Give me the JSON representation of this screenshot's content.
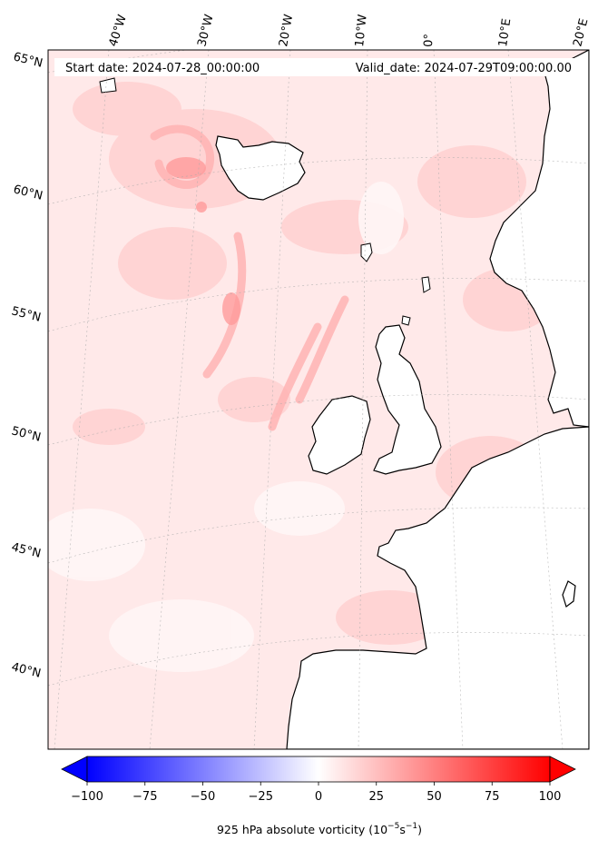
{
  "map": {
    "start_label": "Start date: 2024-07-28_00:00:00",
    "valid_label": "Valid_date: 2024-07-29T09:00:00.00",
    "lon_labels": [
      "40°W",
      "30°W",
      "20°W",
      "10°W",
      "0°",
      "10°E",
      "20°E"
    ],
    "lat_labels": [
      "65°N",
      "60°N",
      "55°N",
      "50°N",
      "45°N",
      "40°N"
    ],
    "colorbar": {
      "min": -100,
      "max": 100,
      "ticks": [
        "−100",
        "−75",
        "−50",
        "−25",
        "0",
        "25",
        "50",
        "75",
        "100"
      ],
      "label": "925 hPa absolute vorticity (10",
      "unit_exp1": "−5",
      "unit_mid": "s",
      "unit_exp2": "−1",
      "unit_end": ")"
    },
    "colors": {
      "negative_max": "#0000ff",
      "zero": "#ffffff",
      "positive_max": "#ff0000",
      "field_base": "#ffe9e9",
      "coastline": "#000000"
    }
  }
}
